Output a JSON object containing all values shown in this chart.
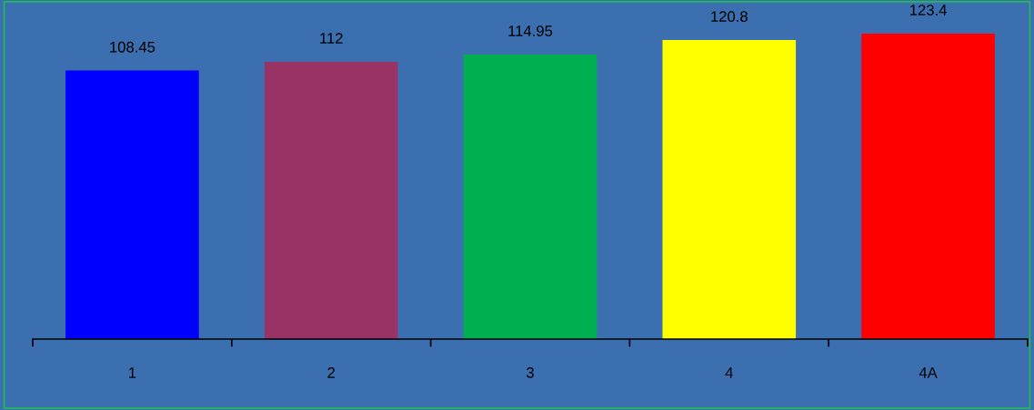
{
  "chart_data": {
    "type": "bar",
    "categories": [
      "1",
      "2",
      "3",
      "4",
      "4A"
    ],
    "values": [
      108.45,
      112,
      114.95,
      120.8,
      123.4
    ],
    "colors": [
      "#0000ff",
      "#993366",
      "#00b050",
      "#ffff00",
      "#ff0000"
    ],
    "data_labels": true,
    "tick_labels": "x",
    "grid": false,
    "legend": false
  }
}
